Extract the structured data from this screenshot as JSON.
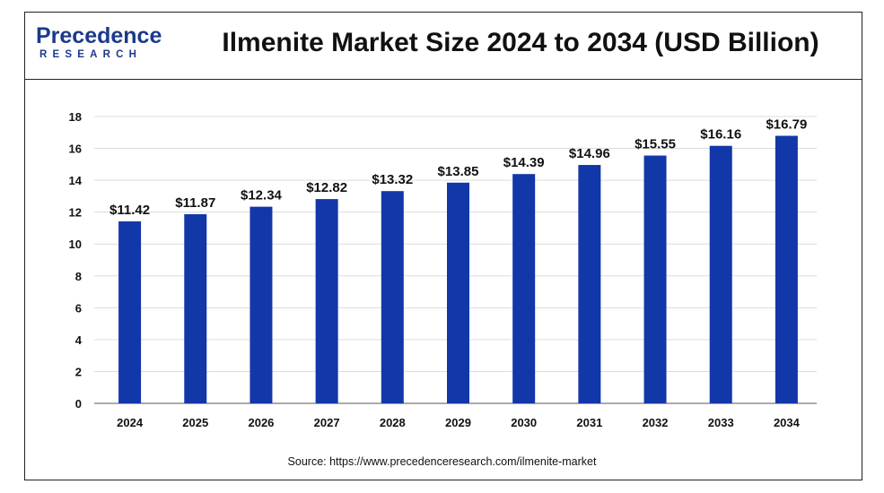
{
  "header": {
    "logo_main": "Precedence",
    "logo_sub": "RESEARCH",
    "title": "Ilmenite Market Size 2024 to 2034 (USD Billion)"
  },
  "footer": {
    "source": "Source: https://www.precedenceresearch.com/ilmenite-market"
  },
  "colors": {
    "bar": "#1237a8",
    "grid": "#dcdcdc",
    "brand": "#1b3a8c"
  },
  "chart_data": {
    "type": "bar",
    "title": "Ilmenite Market Size 2024 to 2034 (USD Billion)",
    "xlabel": "",
    "ylabel": "",
    "categories": [
      "2024",
      "2025",
      "2026",
      "2027",
      "2028",
      "2029",
      "2030",
      "2031",
      "2032",
      "2033",
      "2034"
    ],
    "values": [
      11.42,
      11.87,
      12.34,
      12.82,
      13.32,
      13.85,
      14.39,
      14.96,
      15.55,
      16.16,
      16.79
    ],
    "value_labels": [
      "$11.42",
      "$11.87",
      "$12.34",
      "$12.82",
      "$13.32",
      "$13.85",
      "$14.39",
      "$14.96",
      "$15.55",
      "$16.16",
      "$16.79"
    ],
    "ylim": [
      0,
      18
    ],
    "yticks": [
      0,
      2,
      4,
      6,
      8,
      10,
      12,
      14,
      16,
      18
    ],
    "grid": true,
    "legend": "none"
  }
}
